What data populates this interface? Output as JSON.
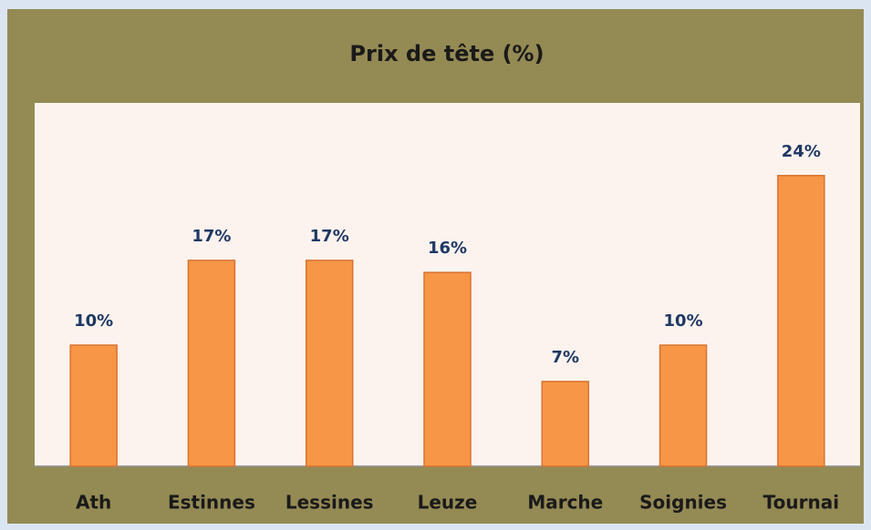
{
  "chart_data": {
    "type": "bar",
    "title": "Prix de tête (%)",
    "categories": [
      "Ath",
      "Estinnes",
      "Lessines",
      "Leuze",
      "Marche",
      "Soignies",
      "Tournai"
    ],
    "values": [
      10,
      17,
      17,
      16,
      7,
      10,
      24
    ],
    "value_labels": [
      "10%",
      "17%",
      "17%",
      "16%",
      "7%",
      "10%",
      "24%"
    ],
    "color": "#f79646",
    "ylim": [
      0,
      30
    ]
  }
}
